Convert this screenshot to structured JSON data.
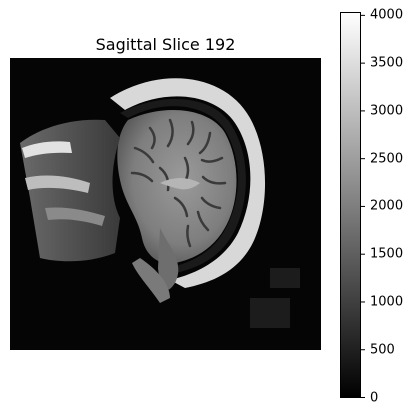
{
  "figure": {
    "title": "Sagittal Slice 192"
  },
  "image": {
    "description_color_scheme": "grayscale",
    "colormap": [
      "#000000",
      "#ffffff"
    ]
  },
  "colorbar": {
    "min": 0,
    "max": 4030,
    "ticks": [
      {
        "value": 0,
        "label": "0"
      },
      {
        "value": 500,
        "label": "500"
      },
      {
        "value": 1000,
        "label": "1000"
      },
      {
        "value": 1500,
        "label": "1500"
      },
      {
        "value": 2000,
        "label": "2000"
      },
      {
        "value": 2500,
        "label": "2500"
      },
      {
        "value": 3000,
        "label": "3000"
      },
      {
        "value": 3500,
        "label": "3500"
      },
      {
        "value": 4000,
        "label": "4000"
      }
    ]
  }
}
